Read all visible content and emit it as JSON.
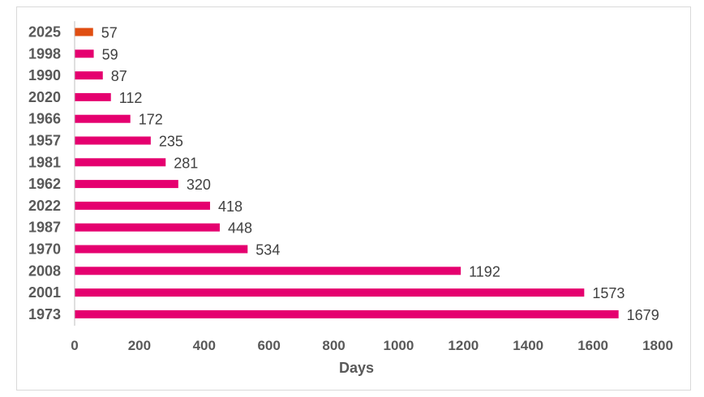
{
  "chart_data": {
    "type": "bar",
    "orientation": "horizontal",
    "title": "",
    "xlabel": "Days",
    "ylabel": "",
    "xlim": [
      0,
      1800
    ],
    "x_ticks": [
      0,
      200,
      400,
      600,
      800,
      1000,
      1200,
      1400,
      1600,
      1800
    ],
    "grid": false,
    "legend": "none",
    "categories": [
      "2025",
      "1998",
      "1990",
      "2020",
      "1966",
      "1957",
      "1981",
      "1962",
      "2022",
      "1987",
      "1970",
      "2008",
      "2001",
      "1973"
    ],
    "values": [
      57,
      59,
      87,
      112,
      172,
      235,
      281,
      320,
      418,
      448,
      534,
      1192,
      1573,
      1679
    ],
    "bar_colors": [
      "#e04e12",
      "#e5006f",
      "#e5006f",
      "#e5006f",
      "#e5006f",
      "#e5006f",
      "#e5006f",
      "#e5006f",
      "#e5006f",
      "#e5006f",
      "#e5006f",
      "#e5006f",
      "#e5006f",
      "#e5006f"
    ],
    "highlight_color": "#e04e12",
    "default_color": "#e5006f",
    "axis_color": "#bfbfbf"
  }
}
